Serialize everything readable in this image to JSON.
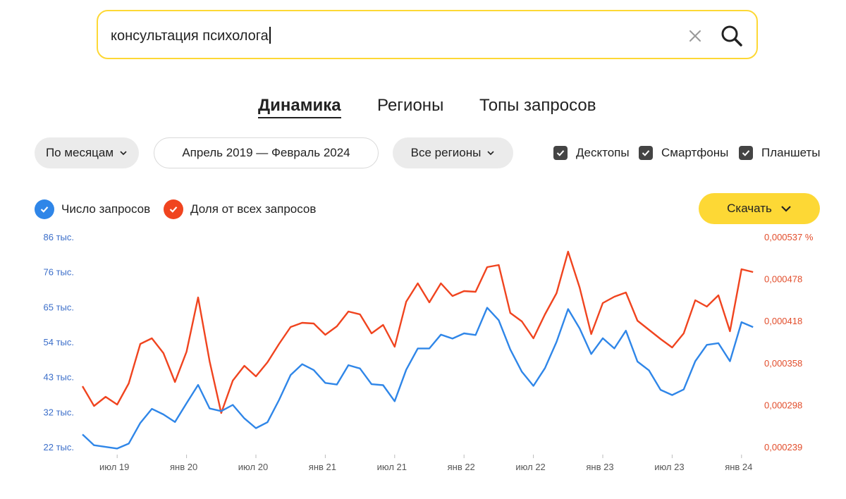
{
  "search": {
    "query": "консультация психолога"
  },
  "tabs": [
    {
      "label": "Динамика",
      "active": true
    },
    {
      "label": "Регионы",
      "active": false
    },
    {
      "label": "Топы запросов",
      "active": false
    }
  ],
  "filters": {
    "period": "По месяцам",
    "date_range": "Апрель 2019 — Февраль 2024",
    "region": "Все регионы",
    "devices": [
      {
        "label": "Десктопы",
        "checked": true
      },
      {
        "label": "Смартфоны",
        "checked": true
      },
      {
        "label": "Планшеты",
        "checked": true
      }
    ]
  },
  "legend": {
    "count_label": "Число запросов",
    "share_label": "Доля от всех запросов"
  },
  "download_label": "Скачать",
  "colors": {
    "count": "#2f86e8",
    "share": "#f0441f",
    "accent": "#fdd835"
  },
  "chart_data": {
    "type": "line",
    "x_labels": [
      "июл 19",
      "янв 20",
      "июл 20",
      "янв 21",
      "июл 21",
      "янв 22",
      "июл 22",
      "янв 23",
      "июл 23",
      "янв 24"
    ],
    "x": [
      "2019-04",
      "2019-05",
      "2019-06",
      "2019-07",
      "2019-08",
      "2019-09",
      "2019-10",
      "2019-11",
      "2019-12",
      "2020-01",
      "2020-02",
      "2020-03",
      "2020-04",
      "2020-05",
      "2020-06",
      "2020-07",
      "2020-08",
      "2020-09",
      "2020-10",
      "2020-11",
      "2020-12",
      "2021-01",
      "2021-02",
      "2021-03",
      "2021-04",
      "2021-05",
      "2021-06",
      "2021-07",
      "2021-08",
      "2021-09",
      "2021-10",
      "2021-11",
      "2021-12",
      "2022-01",
      "2022-02",
      "2022-03",
      "2022-04",
      "2022-05",
      "2022-06",
      "2022-07",
      "2022-08",
      "2022-09",
      "2022-10",
      "2022-11",
      "2022-12",
      "2023-01",
      "2023-02",
      "2023-03",
      "2023-04",
      "2023-05",
      "2023-06",
      "2023-07",
      "2023-08",
      "2023-09",
      "2023-10",
      "2023-11",
      "2023-12",
      "2024-01",
      "2024-02"
    ],
    "y_left_ticks": [
      "86 тыс.",
      "76 тыс.",
      "65 тыс.",
      "54 тыс.",
      "43 тыс.",
      "32 тыс.",
      "22 тыс."
    ],
    "y_right_ticks": [
      "0,000537 %",
      "0,000478",
      "0,000418",
      "0,000358",
      "0,000298",
      "0,000239"
    ],
    "ylim_left": [
      22,
      86
    ],
    "ylim_right": [
      0.000239,
      0.000537
    ],
    "series": [
      {
        "name": "Число запросов",
        "axis": "left",
        "unit": "тыс.",
        "values": [
          26,
          22.7,
          22.2,
          21.7,
          23.2,
          29.5,
          33.8,
          32.1,
          29.8,
          35.5,
          41.1,
          33.9,
          33.1,
          35,
          30.9,
          27.9,
          29.7,
          36.5,
          44.1,
          47.4,
          45.6,
          41.7,
          41.2,
          47.1,
          46.1,
          41.3,
          41,
          36.1,
          45.7,
          52.2,
          52.2,
          56.4,
          55.2,
          56.8,
          56.3,
          64.6,
          60.8,
          51.9,
          45.1,
          40.8,
          46.2,
          54.2,
          64.2,
          58.3,
          50.5,
          55.3,
          52.2,
          57.6,
          48.2,
          45.5,
          39.6,
          38,
          39.7,
          48.3,
          53.3,
          53.8,
          48.3,
          60.2,
          58.7
        ]
      },
      {
        "name": "Доля от всех запросов",
        "axis": "right",
        "unit": "%",
        "values": [
          0.000326,
          0.000298,
          0.000311,
          0.0003,
          0.00033,
          0.000386,
          0.000394,
          0.000373,
          0.000332,
          0.000375,
          0.000452,
          0.000361,
          0.000288,
          0.000334,
          0.000355,
          0.00034,
          0.00036,
          0.000386,
          0.00041,
          0.000416,
          0.000415,
          0.000399,
          0.000411,
          0.000432,
          0.000428,
          0.000401,
          0.000413,
          0.000382,
          0.000446,
          0.000472,
          0.000445,
          0.000472,
          0.000454,
          0.000461,
          0.00046,
          0.000495,
          0.000498,
          0.00043,
          0.000418,
          0.000394,
          0.000428,
          0.000458,
          0.000517,
          0.000466,
          0.0004,
          0.000444,
          0.000453,
          0.000459,
          0.000419,
          0.000406,
          0.000393,
          0.000381,
          0.000401,
          0.000448,
          0.000439,
          0.000455,
          0.000404,
          0.000492,
          0.000488
        ]
      }
    ]
  }
}
